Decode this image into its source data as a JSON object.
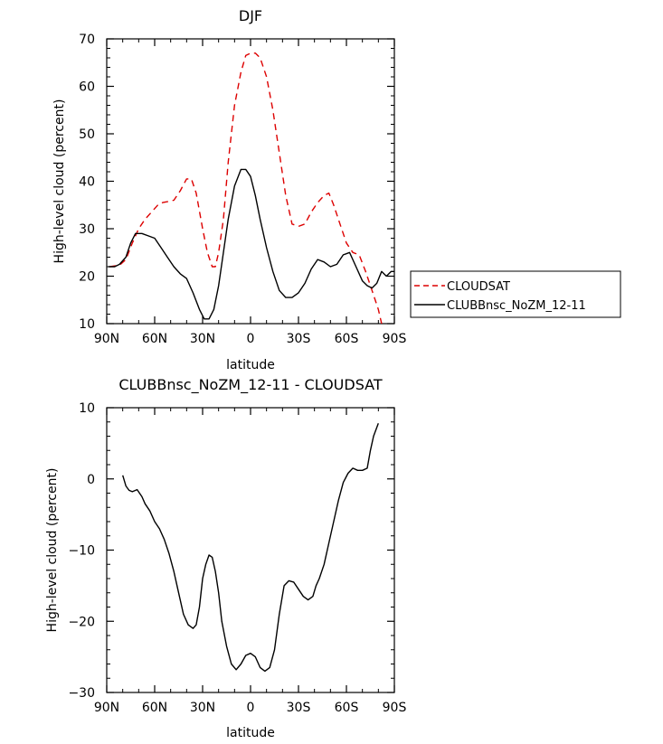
{
  "chart_data": [
    {
      "type": "line",
      "title": "DJF",
      "xlabel": "latitude",
      "ylabel": "High-level cloud (percent)",
      "xlim": [
        90,
        -90
      ],
      "ylim": [
        10,
        70
      ],
      "x_ticks": [
        90,
        60,
        30,
        0,
        -30,
        -60,
        -90
      ],
      "x_tick_labels": [
        "90N",
        "60N",
        "30N",
        "0",
        "30S",
        "60S",
        "90S"
      ],
      "y_ticks": [
        10,
        20,
        30,
        40,
        50,
        60,
        70
      ],
      "y_tick_labels": [
        "10",
        "20",
        "30",
        "40",
        "50",
        "60",
        "70"
      ],
      "legend_position": "right",
      "series": [
        {
          "name": "CLOUDSAT",
          "color": "#dd0000",
          "dash": "dashed",
          "x": [
            88,
            82,
            78,
            74,
            70,
            66,
            62,
            58,
            55,
            52,
            48,
            44,
            40,
            37,
            34,
            30,
            27,
            24,
            22,
            20,
            17,
            14,
            10,
            6,
            3,
            0,
            -3,
            -6,
            -10,
            -14,
            -18,
            -22,
            -26,
            -30,
            -34,
            -38,
            -42,
            -46,
            -49,
            -52,
            -56,
            -60,
            -64,
            -68,
            -72,
            -76,
            -80,
            -82
          ],
          "y": [
            22,
            22.3,
            23.5,
            27,
            30,
            32,
            33.5,
            35,
            35.5,
            35.7,
            36,
            38,
            40.5,
            40.5,
            37.5,
            30,
            25,
            22,
            22,
            25,
            32,
            44,
            56,
            63,
            66.5,
            67,
            67,
            66,
            62,
            55,
            46,
            37,
            31,
            30.5,
            31,
            33.5,
            35.5,
            37,
            37.5,
            35,
            31,
            27,
            25,
            24.5,
            21,
            17,
            13,
            10
          ]
        },
        {
          "name": "CLUBBnsc_NoZM_12-11",
          "color": "#000000",
          "dash": "solid",
          "x": [
            89,
            85,
            82,
            78,
            75,
            72,
            68,
            64,
            60,
            56,
            52,
            48,
            44,
            40,
            36,
            32,
            29,
            26,
            23,
            20,
            17,
            14,
            10,
            6,
            3,
            0,
            -3,
            -6,
            -10,
            -14,
            -18,
            -22,
            -26,
            -30,
            -34,
            -38,
            -42,
            -46,
            -50,
            -54,
            -58,
            -62,
            -66,
            -70,
            -73,
            -76,
            -79,
            -82,
            -85,
            -88,
            -90
          ],
          "y": [
            22,
            22,
            22.5,
            24,
            27,
            29,
            29,
            28.5,
            28,
            26,
            24,
            22,
            20.5,
            19.5,
            16.5,
            13,
            11,
            11,
            13,
            18,
            25,
            32,
            39,
            42.5,
            42.5,
            41,
            37,
            32,
            26,
            21,
            17,
            15.5,
            15.5,
            16.5,
            18.5,
            21.5,
            23.5,
            23,
            22,
            22.5,
            24.5,
            25,
            22,
            19,
            18,
            17.5,
            18.5,
            21,
            20,
            21,
            21
          ]
        }
      ]
    },
    {
      "type": "line",
      "title": "CLUBBnsc_NoZM_12-11 - CLOUDSAT",
      "xlabel": "latitude",
      "ylabel": "High-level cloud (percent)",
      "xlim": [
        90,
        -90
      ],
      "ylim": [
        -30,
        10
      ],
      "x_ticks": [
        90,
        60,
        30,
        0,
        -30,
        -60,
        -90
      ],
      "x_tick_labels": [
        "90N",
        "60N",
        "30N",
        "0",
        "30S",
        "60S",
        "90S"
      ],
      "y_ticks": [
        -30,
        -20,
        -10,
        0,
        10
      ],
      "y_tick_labels": [
        "−30",
        "−20",
        "−10",
        "0",
        "10"
      ],
      "series": [
        {
          "color": "#000000",
          "dash": "solid",
          "x": [
            80,
            78,
            76,
            74,
            71,
            68,
            66,
            63,
            60,
            57,
            54,
            51,
            48,
            45,
            42,
            39,
            36,
            34,
            32,
            30,
            28,
            26,
            24,
            22,
            20,
            18,
            15,
            12,
            9,
            6,
            3,
            0,
            -3,
            -6,
            -9,
            -12,
            -15,
            -18,
            -21,
            -24,
            -27,
            -30,
            -33,
            -36,
            -39,
            -41,
            -43,
            -46,
            -49,
            -52,
            -55,
            -58,
            -61,
            -64,
            -67,
            -70,
            -73,
            -75,
            -77,
            -80
          ],
          "y": [
            0.5,
            -1,
            -1.6,
            -1.8,
            -1.5,
            -2.5,
            -3.5,
            -4.5,
            -6,
            -7,
            -8.5,
            -10.5,
            -13,
            -16,
            -19,
            -20.5,
            -21,
            -20.5,
            -18,
            -14,
            -12,
            -10.7,
            -11,
            -13,
            -16,
            -20,
            -23.5,
            -26,
            -26.8,
            -26,
            -24.8,
            -24.5,
            -25,
            -26.5,
            -27,
            -26.5,
            -24,
            -19,
            -15,
            -14.3,
            -14.5,
            -15.5,
            -16.5,
            -17,
            -16.5,
            -15,
            -14,
            -12,
            -9,
            -6,
            -3,
            -0.5,
            0.8,
            1.5,
            1.2,
            1.2,
            1.5,
            4,
            6,
            7.8
          ]
        }
      ]
    }
  ]
}
